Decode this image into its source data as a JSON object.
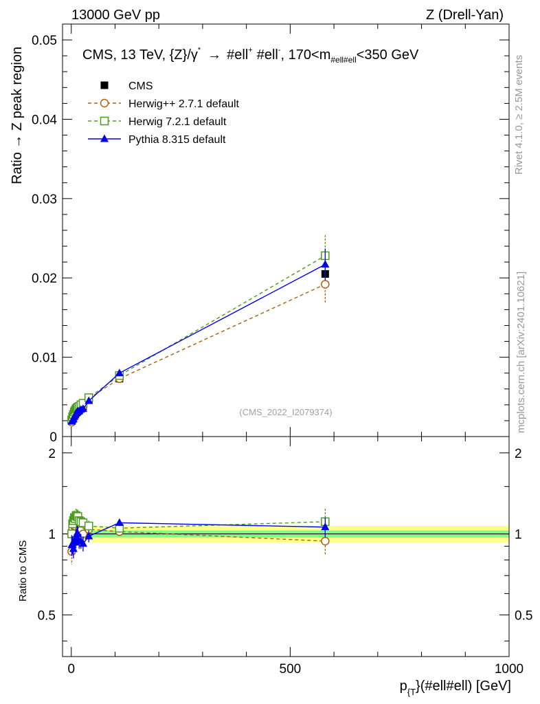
{
  "header": {
    "left": "13000 GeV pp",
    "right": "Z (Drell-Yan)"
  },
  "side_labels": {
    "rivet": "Rivet 4.1.0, ≥ 2.5M events",
    "mcplots": "mcplots.cern.ch [arXiv:2401.10621]"
  },
  "chart_data": [
    {
      "type": "line",
      "panel": "main",
      "title": "CMS, 13 TeV, {Z}/γ* → #ell⁺ #ell⁻, 170<m_{#ell#ell}<350 GeV",
      "title_parts": {
        "lead": "CMS, 13 TeV, {Z}/",
        "gamma": "γ",
        "star": "*",
        "arrow": "→",
        "ell1": "#ell",
        "plus": "+",
        "ell2": "#ell",
        "minus": "-",
        "comma": ", 170<m",
        "msub": "#ell#ell",
        "tail": "<350 GeV"
      },
      "ylabel": "Ratio → Z peak region",
      "watermark": "(CMS_2022_I2079374)",
      "xlim": [
        -20,
        1000
      ],
      "ylim": [
        0,
        0.052
      ],
      "yticks": [
        0,
        0.01,
        0.02,
        0.03,
        0.04,
        0.05
      ],
      "ytick_labels": [
        "0",
        "0.01",
        "0.02",
        "0.03",
        "0.04",
        "0.05"
      ],
      "series": [
        {
          "name": "CMS",
          "color": "#000000",
          "marker": "square-filled",
          "x": [
            1,
            3,
            5,
            7,
            9,
            11,
            13,
            15,
            18,
            22,
            27,
            40,
            110,
            580
          ],
          "y": [
            0.0021,
            0.0023,
            0.0025,
            0.0027,
            0.0029,
            0.003,
            0.0031,
            0.0032,
            0.0034,
            0.0036,
            0.0038,
            0.0046,
            0.0073,
            0.0205
          ]
        },
        {
          "name": "Herwig++ 2.7.1 default",
          "color": "#b05f10",
          "marker": "circle-open",
          "dash": "5,4",
          "x": [
            1,
            3,
            5,
            7,
            9,
            11,
            13,
            15,
            18,
            22,
            27,
            40,
            110,
            580
          ],
          "y": [
            0.0018,
            0.0024,
            0.0027,
            0.0029,
            0.0031,
            0.0033,
            0.0034,
            0.0035,
            0.0036,
            0.0037,
            0.0038,
            0.0048,
            0.0073,
            0.0192
          ],
          "yerr": [
            0.0002,
            0.0002,
            0.0002,
            0.0002,
            0.0002,
            0.0002,
            0.0002,
            0.0002,
            0.0002,
            0.0002,
            0.0002,
            0.0003,
            0.0004,
            0.0023
          ]
        },
        {
          "name": "Herwig 7.2.1 default",
          "color": "#4a9c1c",
          "marker": "square-open",
          "dash": "5,4",
          "x": [
            1,
            3,
            5,
            7,
            9,
            11,
            13,
            15,
            18,
            22,
            27,
            40,
            110,
            580
          ],
          "y": [
            0.0021,
            0.0025,
            0.0028,
            0.0031,
            0.0033,
            0.0035,
            0.0036,
            0.0037,
            0.0038,
            0.004,
            0.0042,
            0.0049,
            0.0077,
            0.0228
          ],
          "yerr": [
            0.0002,
            0.0002,
            0.0002,
            0.0002,
            0.0002,
            0.0002,
            0.0002,
            0.0002,
            0.0002,
            0.0002,
            0.0002,
            0.0003,
            0.0004,
            0.0026
          ]
        },
        {
          "name": "Pythia 8.315 default",
          "color": "#0000ee",
          "marker": "triangle-filled",
          "x": [
            1,
            3,
            5,
            7,
            9,
            11,
            13,
            15,
            18,
            22,
            27,
            40,
            110,
            580
          ],
          "y": [
            0.0019,
            0.0021,
            0.0022,
            0.0025,
            0.0027,
            0.0029,
            0.0031,
            0.0032,
            0.0032,
            0.0034,
            0.0035,
            0.0045,
            0.008,
            0.0217
          ],
          "yerr": [
            0.0002,
            0.0002,
            0.0002,
            0.0002,
            0.0002,
            0.0002,
            0.0002,
            0.0002,
            0.0002,
            0.0002,
            0.0002,
            0.0003,
            0.0004,
            0.002
          ]
        }
      ]
    },
    {
      "type": "line",
      "panel": "ratio",
      "ylabel": "Ratio to CMS",
      "xlabel": "p_{T}(#ell#ell) [GeV]",
      "xlabel_parts": {
        "p": "p",
        "sub": "{T",
        "tail": "}(#ell#ell) [GeV]"
      },
      "xlim": [
        -20,
        1000
      ],
      "xticks": [
        0,
        500,
        1000
      ],
      "xtick_labels": [
        "0",
        "500",
        "1000"
      ],
      "ylim": [
        0.35,
        2.3
      ],
      "yticks": [
        0.5,
        1,
        2
      ],
      "ytick_labels": [
        "0.5",
        "1",
        "2"
      ],
      "bands": {
        "stat_color": "#7fff7f",
        "total_color": "#ffff8c",
        "segments": [
          {
            "x0": 0,
            "x1": 20,
            "stat": 0.04,
            "total": 0.07
          },
          {
            "x0": 20,
            "x1": 50,
            "stat": 0.03,
            "total": 0.06
          },
          {
            "x0": 50,
            "x1": 170,
            "stat": 0.03,
            "total": 0.07
          },
          {
            "x0": 170,
            "x1": 1000,
            "stat": 0.03,
            "total": 0.07
          }
        ]
      },
      "series": [
        {
          "name": "Herwig++ 2.7.1 default",
          "color": "#b05f10",
          "marker": "circle-open",
          "dash": "5,4",
          "x": [
            1,
            3,
            5,
            7,
            9,
            11,
            13,
            15,
            18,
            22,
            27,
            40,
            110,
            580
          ],
          "y": [
            0.86,
            1.04,
            1.08,
            1.07,
            1.07,
            1.1,
            1.1,
            1.09,
            1.06,
            1.03,
            1.0,
            1.04,
            1.02,
            0.94
          ],
          "yerr": [
            0.09,
            0.08,
            0.07,
            0.07,
            0.07,
            0.07,
            0.07,
            0.07,
            0.06,
            0.06,
            0.06,
            0.05,
            0.04,
            0.11
          ]
        },
        {
          "name": "Herwig 7.2.1 default",
          "color": "#4a9c1c",
          "marker": "square-open",
          "dash": "5,4",
          "x": [
            1,
            3,
            5,
            7,
            9,
            11,
            13,
            15,
            18,
            22,
            27,
            40,
            110,
            580
          ],
          "y": [
            1.0,
            1.09,
            1.12,
            1.15,
            1.14,
            1.17,
            1.16,
            1.16,
            1.12,
            1.11,
            1.1,
            1.07,
            1.05,
            1.11
          ],
          "yerr": [
            0.08,
            0.08,
            0.07,
            0.07,
            0.07,
            0.07,
            0.07,
            0.07,
            0.06,
            0.06,
            0.06,
            0.05,
            0.04,
            0.13
          ]
        },
        {
          "name": "Pythia 8.315 default",
          "color": "#0000ee",
          "marker": "triangle-filled",
          "x": [
            1,
            3,
            5,
            7,
            9,
            11,
            13,
            15,
            18,
            22,
            27,
            40,
            110,
            580
          ],
          "y": [
            0.91,
            0.91,
            0.88,
            0.93,
            0.93,
            0.97,
            1.0,
            1.0,
            0.94,
            0.94,
            0.92,
            0.98,
            1.1,
            1.06
          ],
          "yerr": [
            0.08,
            0.07,
            0.07,
            0.07,
            0.07,
            0.07,
            0.07,
            0.07,
            0.06,
            0.06,
            0.06,
            0.05,
            0.03,
            0.09
          ]
        }
      ]
    }
  ]
}
